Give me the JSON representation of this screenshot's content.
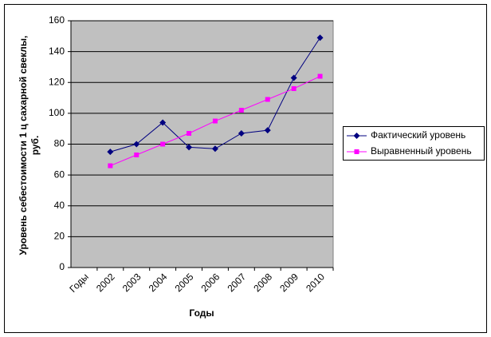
{
  "chart_data": {
    "type": "line",
    "x_label": "Годы",
    "y_label": "Уровень себестоимости 1 ц сахарной свеклы, руб.",
    "categories": [
      "Годы",
      "2002",
      "2003",
      "2004",
      "2005",
      "2006",
      "2007",
      "2008",
      "2009",
      "2010"
    ],
    "series": [
      {
        "name": "Фактический уровень",
        "color": "#000080",
        "marker": "diamond",
        "values": [
          null,
          75,
          80,
          94,
          78,
          77,
          87,
          89,
          123,
          149
        ]
      },
      {
        "name": "Выравненный уровень",
        "color": "#ff00ff",
        "marker": "square",
        "values": [
          null,
          66,
          73,
          80,
          87,
          95,
          102,
          109,
          116,
          124
        ]
      }
    ],
    "ylim": [
      0,
      160
    ],
    "yticks": [
      0,
      20,
      40,
      60,
      80,
      100,
      120,
      140,
      160
    ],
    "grid": true,
    "legend": "right",
    "plot_background": "#c0c0c0"
  }
}
